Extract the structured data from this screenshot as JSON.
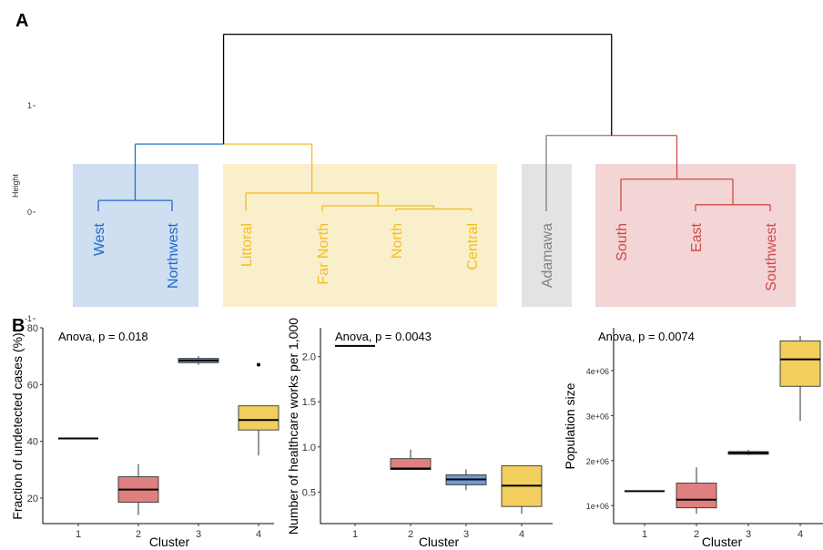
{
  "panel_labels": {
    "a": "A",
    "b": "B"
  },
  "colors": {
    "cluster1": "#1F6CC9",
    "cluster2": "#F2BD20",
    "cluster3": "#808080",
    "cluster4": "#D14848",
    "root": "#000000",
    "box_fill": [
      "#E07F7F",
      "#6B9BCF",
      "#F2CE5E"
    ],
    "bg_fill": [
      "#CFDEF0",
      "#FAEFCB",
      "#E3E3E3",
      "#F3D5D6"
    ]
  },
  "chart_data": [
    {
      "type": "dendrogram",
      "panel": "A",
      "ylabel": "Height",
      "yticks": [
        -1,
        0,
        1
      ],
      "leaves": [
        {
          "label": "West",
          "cluster": 1
        },
        {
          "label": "Northwest",
          "cluster": 1
        },
        {
          "label": "Littoral",
          "cluster": 2
        },
        {
          "label": "Far North",
          "cluster": 2
        },
        {
          "label": "North",
          "cluster": 2
        },
        {
          "label": "Central",
          "cluster": 2
        },
        {
          "label": "Adamawa",
          "cluster": 3
        },
        {
          "label": "South",
          "cluster": 4
        },
        {
          "label": "East",
          "cluster": 4
        },
        {
          "label": "Southwest",
          "cluster": 4
        }
      ],
      "merges": [
        {
          "left": "North",
          "right": "Central",
          "height": 0.03
        },
        {
          "left": "Far North",
          "right": "North+Central",
          "height": 0.06
        },
        {
          "left": "Littoral",
          "right": "Far North+North+Central",
          "height": 0.18
        },
        {
          "left": "West",
          "right": "Northwest",
          "height": 0.11
        },
        {
          "left": "West+Northwest",
          "right": "Littoral+Far North+North+Central",
          "height": 0.64
        },
        {
          "left": "East",
          "right": "Southwest",
          "height": 0.07
        },
        {
          "left": "South",
          "right": "East+Southwest",
          "height": 0.31
        },
        {
          "left": "Adamawa",
          "right": "South+East+Southwest",
          "height": 0.72
        },
        {
          "left": "cluster 1+2",
          "right": "cluster 3+4",
          "height": 1.67
        }
      ]
    },
    {
      "type": "box",
      "panel": "B",
      "annotation": "Anova, p = 0.018",
      "xlabel": "Cluster",
      "ylabel": "Fraction of undetected cases (%)",
      "categories": [
        "1",
        "2",
        "3",
        "4"
      ],
      "ylim": [
        11,
        80
      ],
      "yticks": [
        20,
        40,
        60,
        80
      ],
      "boxes": [
        {
          "min": 41,
          "q1": 41,
          "median": 41,
          "q3": 41,
          "max": 41,
          "outliers": []
        },
        {
          "min": 14,
          "q1": 18.5,
          "median": 23,
          "q3": 27.5,
          "max": 32,
          "outliers": []
        },
        {
          "min": 67,
          "q1": 67.7,
          "median": 68.5,
          "q3": 69.2,
          "max": 70,
          "outliers": []
        },
        {
          "min": 35,
          "q1": 44,
          "median": 47.5,
          "q3": 52.5,
          "max": 52.5,
          "outliers": [
            67
          ]
        }
      ]
    },
    {
      "type": "box",
      "panel": "B",
      "annotation": "Anova, p = 0.0043",
      "xlabel": "Cluster",
      "ylabel": "Number of healthcare works per 1,000",
      "categories": [
        "1",
        "2",
        "3",
        "4"
      ],
      "ylim": [
        0.15,
        2.32
      ],
      "yticks": [
        0.5,
        1.0,
        1.5,
        2.0
      ],
      "ytick_labels": [
        "0.5",
        "1.0",
        "1.5",
        "2.0"
      ],
      "boxes": [
        {
          "min": 2.12,
          "q1": 2.12,
          "median": 2.12,
          "q3": 2.12,
          "max": 2.12,
          "outliers": []
        },
        {
          "min": 0.75,
          "q1": 0.75,
          "median": 0.76,
          "q3": 0.87,
          "max": 0.97,
          "outliers": []
        },
        {
          "min": 0.52,
          "q1": 0.58,
          "median": 0.64,
          "q3": 0.69,
          "max": 0.75,
          "outliers": []
        },
        {
          "min": 0.26,
          "q1": 0.34,
          "median": 0.57,
          "q3": 0.79,
          "max": 0.79,
          "outliers": []
        }
      ]
    },
    {
      "type": "box",
      "panel": "B",
      "annotation": "Anova, p = 0.0074",
      "xlabel": "Cluster",
      "ylabel": "Population size",
      "categories": [
        "1",
        "2",
        "3",
        "4"
      ],
      "ylim": [
        600000,
        4950000
      ],
      "yticks": [
        1000000,
        2000000,
        3000000,
        4000000
      ],
      "ytick_labels": [
        "1e+06",
        "2e+06",
        "3e+06",
        "4e+06"
      ],
      "boxes": [
        {
          "min": 1320000,
          "q1": 1320000,
          "median": 1320000,
          "q3": 1320000,
          "max": 1320000,
          "outliers": []
        },
        {
          "min": 820000,
          "q1": 950000,
          "median": 1130000,
          "q3": 1500000,
          "max": 1850000,
          "outliers": []
        },
        {
          "min": 2120000,
          "q1": 2140000,
          "median": 2170000,
          "q3": 2200000,
          "max": 2240000,
          "outliers": []
        },
        {
          "min": 2880000,
          "q1": 3650000,
          "median": 4250000,
          "q3": 4660000,
          "max": 4770000,
          "outliers": []
        }
      ]
    }
  ]
}
